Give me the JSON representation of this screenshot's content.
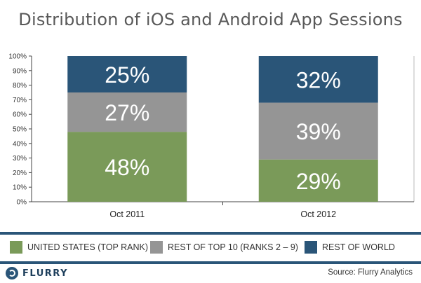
{
  "chart_data": {
    "type": "bar",
    "stacked": true,
    "title": "Distribution of iOS and Android App Sessions",
    "categories": [
      "Oct 2011",
      "Oct 2012"
    ],
    "series": [
      {
        "name": "UNITED STATES (TOP RANK)",
        "values": [
          48,
          29
        ],
        "color": "#7a9a59",
        "labels": [
          "48%",
          "29%"
        ]
      },
      {
        "name": "REST OF TOP 10 (RANKS 2 – 9)",
        "values": [
          27,
          39
        ],
        "color": "#959595",
        "labels": [
          "27%",
          "39%"
        ]
      },
      {
        "name": "REST OF WORLD",
        "values": [
          25,
          32
        ],
        "color": "#2a5578",
        "labels": [
          "25%",
          "32%"
        ]
      }
    ],
    "yticks": [
      "0%",
      "10%",
      "20%",
      "30%",
      "40%",
      "50%",
      "60%",
      "70%",
      "80%",
      "90%",
      "100%"
    ],
    "ylim": [
      0,
      100
    ],
    "grid": false,
    "legend_position": "bottom"
  },
  "footer": {
    "logo_text": "FLURRY",
    "source": "Source: Flurry Analytics"
  }
}
